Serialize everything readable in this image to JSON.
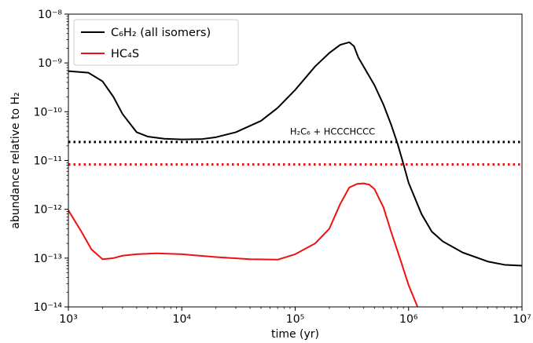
{
  "chart_data": {
    "type": "line",
    "xscale": "log",
    "yscale": "log",
    "xlabel": "time (yr)",
    "ylabel": "abundance relative to H₂",
    "xlim": [
      1000,
      10000000
    ],
    "ylim": [
      1e-14,
      1e-08
    ],
    "x_tick_labels": [
      "10³",
      "10⁴",
      "10⁵",
      "10⁶",
      "10⁷"
    ],
    "y_tick_labels": [
      "10⁻¹⁴",
      "10⁻¹³",
      "10⁻¹²",
      "10⁻¹¹",
      "10⁻¹⁰",
      "10⁻⁹",
      "10⁻⁸"
    ],
    "legend_position": "top-left",
    "series": [
      {
        "name": "C₆H₂ (all isomers)",
        "color": "#000000",
        "style": "solid",
        "x": [
          1000,
          1500,
          2000,
          2500,
          3000,
          4000,
          5000,
          7000,
          10000,
          15000,
          20000,
          30000,
          50000,
          70000,
          100000,
          150000,
          200000,
          250000,
          300000,
          330000,
          360000,
          400000,
          500000,
          600000,
          700000,
          800000,
          900000,
          1000000,
          1300000,
          1600000,
          2000000,
          3000000,
          5000000,
          7000000,
          10000000
        ],
        "y": [
          6.8e-10,
          6.3e-10,
          4.2e-10,
          2e-10,
          9e-11,
          3.8e-11,
          3.1e-11,
          2.8e-11,
          2.7e-11,
          2.75e-11,
          3e-11,
          3.8e-11,
          6.5e-11,
          1.2e-10,
          2.8e-10,
          8.5e-10,
          1.6e-09,
          2.35e-09,
          2.65e-09,
          2.2e-09,
          1.3e-09,
          8.5e-10,
          3.5e-10,
          1.4e-10,
          5.5e-11,
          2.2e-11,
          8.5e-12,
          3.5e-12,
          8e-13,
          3.5e-13,
          2.2e-13,
          1.3e-13,
          8.5e-14,
          7.3e-14,
          7e-14
        ]
      },
      {
        "name": "HC₄S",
        "color": "#ee1111",
        "style": "solid",
        "x": [
          1000,
          1300,
          1600,
          2000,
          2500,
          3000,
          4000,
          6000,
          10000,
          20000,
          40000,
          70000,
          100000,
          150000,
          200000,
          250000,
          300000,
          350000,
          400000,
          450000,
          500000,
          600000,
          700000,
          850000,
          1000000,
          1200000
        ],
        "y": [
          9.5e-13,
          3.5e-13,
          1.5e-13,
          9.5e-14,
          1e-13,
          1.12e-13,
          1.2e-13,
          1.25e-13,
          1.2e-13,
          1.05e-13,
          9.5e-14,
          9.3e-14,
          1.2e-13,
          2e-13,
          4e-13,
          1.3e-12,
          2.8e-12,
          3.3e-12,
          3.4e-12,
          3.2e-12,
          2.6e-12,
          1.1e-12,
          3.5e-13,
          9e-14,
          2.8e-14,
          1e-14
        ]
      },
      {
        "name": "",
        "color": "#000000",
        "style": "dotted",
        "x": [
          1000,
          10000000
        ],
        "y": [
          2.4e-11,
          2.4e-11
        ]
      },
      {
        "name": "",
        "color": "#ee1111",
        "style": "dotted",
        "x": [
          1000,
          10000000
        ],
        "y": [
          8.3e-12,
          8.3e-12
        ]
      }
    ],
    "annotations": [
      {
        "text": "H₂C₆ + HCCCHCCC",
        "x": 90000,
        "y": 3.4e-11
      }
    ]
  }
}
